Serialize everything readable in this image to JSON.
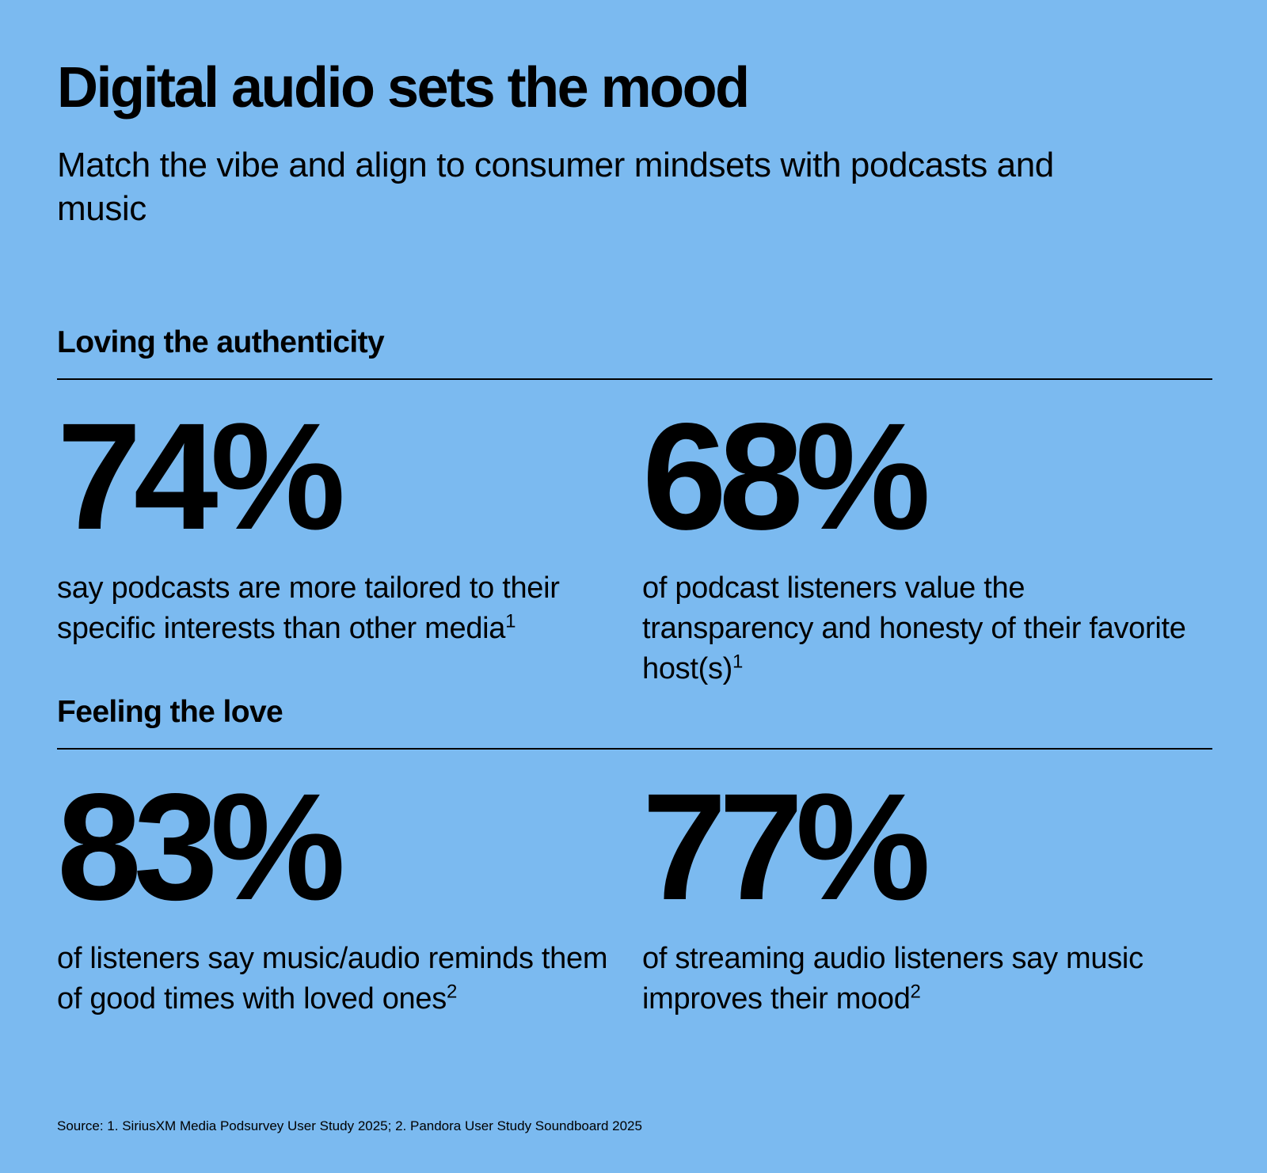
{
  "header": {
    "title": "Digital audio sets the mood",
    "subtitle": "Match the vibe and align to consumer mindsets with podcasts and music"
  },
  "sections": [
    {
      "heading": "Loving the authenticity",
      "stats": [
        {
          "value": "74%",
          "text": "say podcasts are more tailored to their specific interests than other media",
          "footnote": "1"
        },
        {
          "value": "68%",
          "text": "of podcast listeners value the transparency and honesty of their favorite host(s)",
          "footnote": "1"
        }
      ]
    },
    {
      "heading": "Feeling the love",
      "stats": [
        {
          "value": "83%",
          "text": "of listeners say music/audio reminds them of good times with loved ones",
          "footnote": "2"
        },
        {
          "value": "77%",
          "text": "of streaming audio listeners say music improves their mood",
          "footnote": "2"
        }
      ]
    }
  ],
  "footer": {
    "source": "Source: 1. SiriusXM Media Podsurvey User Study 2025; 2. Pandora User Study Soundboard 2025"
  },
  "colors": {
    "background": "#7bbaf0",
    "text": "#000000"
  }
}
